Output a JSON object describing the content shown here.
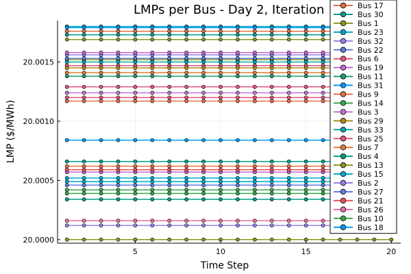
{
  "chart_data": {
    "type": "line",
    "title": "LMPs per Bus - Day 2, Iteration",
    "xlabel": "Time Step",
    "ylabel": "LMP ($/MWh)",
    "xlim": [
      0.45,
      20.55
    ],
    "ylim": [
      19.99997,
      20.00185
    ],
    "xticks": [
      5,
      10,
      15,
      20
    ],
    "yticks": [
      {
        "value": 20.0,
        "label": "20.0000"
      },
      {
        "value": 20.0005,
        "label": "20.0005"
      },
      {
        "value": 20.001,
        "label": "20.0010"
      },
      {
        "value": 20.0015,
        "label": "20.0015"
      }
    ],
    "grid": true,
    "legend_position": "top-right",
    "x": [
      1,
      2,
      3,
      4,
      5,
      6,
      7,
      8,
      9,
      10,
      11,
      12,
      13,
      14,
      15,
      16,
      17,
      18,
      19,
      20
    ],
    "series": [
      {
        "name": "Bus 17",
        "color": "#e26f46",
        "value": 20.00176
      },
      {
        "name": "Bus 30",
        "color": "#009b8e",
        "value": 20.00173
      },
      {
        "name": "Bus 1",
        "color": "#8e971d",
        "value": 20.00169
      },
      {
        "name": "Bus 23",
        "color": "#00a9ca",
        "value": 20.0018
      },
      {
        "name": "Bus 32",
        "color": "#9b7fe8",
        "value": 20.00156
      },
      {
        "name": "Bus 22",
        "color": "#5e7fe0",
        "value": 20.00153
      },
      {
        "name": "Bus 6",
        "color": "#e0577a",
        "value": 20.00147
      },
      {
        "name": "Bus 19",
        "color": "#c16ad1",
        "value": 20.00158
      },
      {
        "name": "Bus 11",
        "color": "#1b9e77",
        "value": 20.00138
      },
      {
        "name": "Bus 31",
        "color": "#009af9",
        "value": 20.00084
      },
      {
        "name": "Bus 9",
        "color": "#e26f46",
        "value": 20.00117
      },
      {
        "name": "Bus 14",
        "color": "#3da44d",
        "value": 20.00039
      },
      {
        "name": "Bus 3",
        "color": "#c271d2",
        "value": 20.00124
      },
      {
        "name": "Bus 29",
        "color": "#ac8e18",
        "value": 20.00145
      },
      {
        "name": "Bus 33",
        "color": "#00a9ad",
        "value": 20.0015
      },
      {
        "name": "Bus 25",
        "color": "#e0577a",
        "value": 20.00129
      },
      {
        "name": "Bus 7",
        "color": "#dc7b36",
        "value": 20.00141
      },
      {
        "name": "Bus 4",
        "color": "#00a087",
        "value": 20.00066
      },
      {
        "name": "Bus 13",
        "color": "#8e971d",
        "value": 20.0
      },
      {
        "name": "Bus 15",
        "color": "#00a9ca",
        "value": 20.00052
      },
      {
        "name": "Bus 2",
        "color": "#9b7fe8",
        "value": 20.00012
      },
      {
        "name": "Bus 27",
        "color": "#5e7fe0",
        "value": 20.00046
      },
      {
        "name": "Bus 21",
        "color": "#e8505b",
        "value": 20.00059
      },
      {
        "name": "Bus 26",
        "color": "#e66fa4",
        "value": 20.00016
      },
      {
        "name": "Bus 10",
        "color": "#3da44d",
        "value": 20.00042
      },
      {
        "name": "Bus 18",
        "color": "#009af9",
        "value": 20.00179
      }
    ],
    "extra_series": [
      {
        "color": "#e26f46",
        "value": 20.00062
      },
      {
        "color": "#00a9ca",
        "value": 20.00049
      },
      {
        "color": "#c16ad1",
        "value": 20.00057
      },
      {
        "color": "#009b8e",
        "value": 20.00034
      },
      {
        "color": "#e0577a",
        "value": 20.0012
      },
      {
        "color": "#8e971d",
        "value": 20.00152
      }
    ]
  }
}
